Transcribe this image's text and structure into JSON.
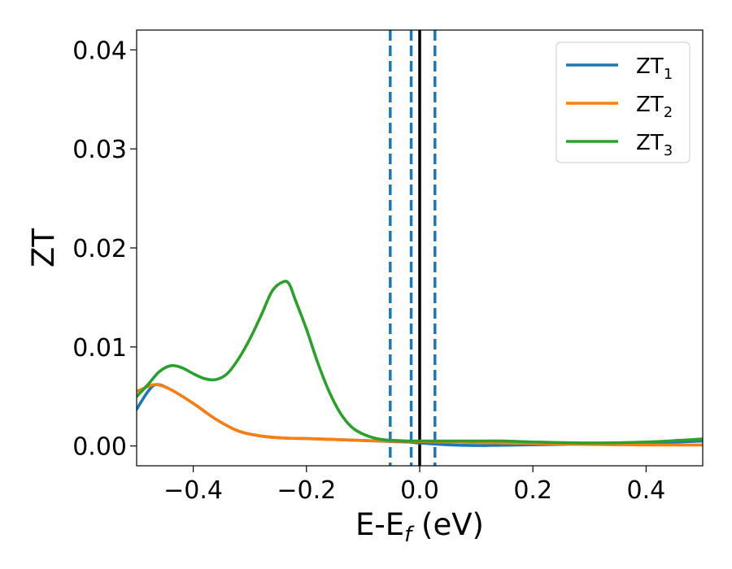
{
  "chart_data": {
    "type": "line",
    "xlabel": "E-E",
    "xlabel_sub": "f",
    "xlabel_unit": " (eV)",
    "ylabel": "ZT",
    "xlim": [
      -0.5,
      0.5
    ],
    "ylim": [
      -0.002,
      0.042
    ],
    "xticks": [
      -0.4,
      -0.2,
      0.0,
      0.2,
      0.4
    ],
    "xtick_labels": [
      "−0.4",
      "−0.2",
      "0.0",
      "0.2",
      "0.4"
    ],
    "yticks": [
      0.0,
      0.01,
      0.02,
      0.03,
      0.04
    ],
    "ytick_labels": [
      "0.00",
      "0.01",
      "0.02",
      "0.03",
      "0.04"
    ],
    "legend_position": "top-right",
    "series": [
      {
        "name": "ZT",
        "name_sub": "1",
        "color": "#1f77b4",
        "x": [
          -0.5,
          -0.48,
          -0.465,
          -0.44,
          -0.4,
          -0.36,
          -0.32,
          -0.28,
          -0.24,
          -0.2,
          -0.15,
          -0.1,
          -0.05,
          -0.02,
          0.0,
          0.05,
          0.1,
          0.15,
          0.2,
          0.3,
          0.4,
          0.5
        ],
        "values": [
          0.0037,
          0.0055,
          0.0062,
          0.0057,
          0.0043,
          0.0027,
          0.0015,
          0.001,
          0.0008,
          0.00075,
          0.00065,
          0.00055,
          0.00045,
          0.0004,
          0.0003,
          0.00012,
          5e-05,
          8e-05,
          0.00012,
          0.0002,
          0.0003,
          0.0005
        ]
      },
      {
        "name": "ZT",
        "name_sub": "2",
        "color": "#ff7f0e",
        "x": [
          -0.5,
          -0.48,
          -0.465,
          -0.44,
          -0.4,
          -0.36,
          -0.32,
          -0.28,
          -0.24,
          -0.2,
          -0.15,
          -0.1,
          -0.05,
          0.0,
          0.05,
          0.1,
          0.15,
          0.2,
          0.3,
          0.4,
          0.5
        ],
        "values": [
          0.0055,
          0.006,
          0.0062,
          0.0057,
          0.0043,
          0.0027,
          0.0015,
          0.001,
          0.0008,
          0.00075,
          0.00065,
          0.00055,
          0.00048,
          0.00045,
          0.0004,
          0.00035,
          0.0003,
          0.00025,
          0.00015,
          0.0001,
          0.0001
        ]
      },
      {
        "name": "ZT",
        "name_sub": "3",
        "color": "#2ca02c",
        "x": [
          -0.5,
          -0.48,
          -0.46,
          -0.44,
          -0.42,
          -0.4,
          -0.38,
          -0.36,
          -0.34,
          -0.32,
          -0.3,
          -0.28,
          -0.26,
          -0.24,
          -0.23,
          -0.22,
          -0.2,
          -0.18,
          -0.16,
          -0.14,
          -0.12,
          -0.1,
          -0.08,
          -0.06,
          -0.04,
          -0.02,
          0.0,
          0.05,
          0.1,
          0.15,
          0.2,
          0.3,
          0.4,
          0.5
        ],
        "values": [
          0.005,
          0.0062,
          0.0075,
          0.0081,
          0.0079,
          0.0073,
          0.0068,
          0.0067,
          0.0073,
          0.0088,
          0.0108,
          0.0132,
          0.0157,
          0.0166,
          0.0163,
          0.0148,
          0.0118,
          0.0084,
          0.0055,
          0.0033,
          0.0019,
          0.0012,
          0.0008,
          0.0006,
          0.00055,
          0.0005,
          0.0005,
          0.0005,
          0.0005,
          0.0005,
          0.0004,
          0.0003,
          0.0004,
          0.0007
        ]
      }
    ],
    "vertical_lines": [
      {
        "x": -0.052,
        "style": "dashed",
        "color": "#1f77b4"
      },
      {
        "x": -0.015,
        "style": "dashed",
        "color": "#1f77b4"
      },
      {
        "x": 0.0,
        "style": "solid",
        "color": "#000000"
      },
      {
        "x": 0.027,
        "style": "dashed",
        "color": "#1f77b4"
      }
    ]
  }
}
